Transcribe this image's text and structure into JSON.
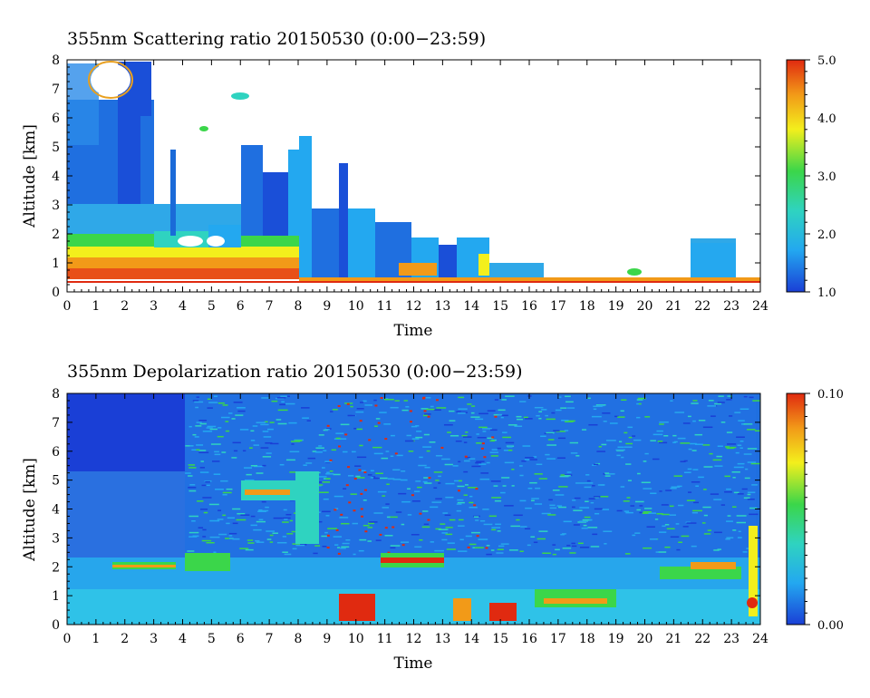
{
  "chart_data": [
    {
      "type": "heatmap",
      "title": "355nm Scattering ratio  20150530 (0:00−23:59)",
      "xlabel": "Time",
      "ylabel": "Altitude [km]",
      "xlim": [
        0,
        24
      ],
      "ylim": [
        0,
        8
      ],
      "x_ticks": [
        "0",
        "1",
        "2",
        "3",
        "4",
        "5",
        "6",
        "7",
        "8",
        "9",
        "10",
        "11",
        "12",
        "13",
        "14",
        "15",
        "16",
        "17",
        "18",
        "19",
        "20",
        "21",
        "22",
        "23",
        "24"
      ],
      "y_ticks": [
        "0",
        "1",
        "2",
        "3",
        "4",
        "5",
        "6",
        "7",
        "8"
      ],
      "colorbar": {
        "min": 1.0,
        "max": 5.0,
        "ticks": [
          "1.0",
          "2.0",
          "3.0",
          "4.0",
          "5.0"
        ]
      },
      "colormap": [
        "#1a3fd6",
        "#23a8f0",
        "#2fd3c0",
        "#3bd64a",
        "#f3ef1c",
        "#f29a18",
        "#e02a10"
      ],
      "features": [
        {
          "t0": 0.0,
          "t1": 8.0,
          "h0": 0.3,
          "h1": 1.0,
          "value": 4.2
        },
        {
          "t0": 0.0,
          "t1": 8.0,
          "h0": 1.0,
          "h1": 1.8,
          "value": 3.0
        },
        {
          "t0": 0.0,
          "t1": 3.0,
          "h0": 1.8,
          "h1": 7.5,
          "value": 1.6
        },
        {
          "t0": 6.0,
          "t1": 8.0,
          "h0": 1.8,
          "h1": 4.6,
          "value": 1.5
        },
        {
          "t0": 8.0,
          "t1": 14.5,
          "h0": 0.3,
          "h1": 2.6,
          "value": 1.7
        },
        {
          "t0": 11.5,
          "t1": 13.5,
          "h0": 0.3,
          "h1": 1.0,
          "value": 4.3
        },
        {
          "t0": 14.5,
          "t1": 16.0,
          "h0": 0.3,
          "h1": 0.5,
          "value": 1.5
        },
        {
          "t0": 21.7,
          "t1": 23.0,
          "h0": 0.3,
          "h1": 1.9,
          "value": 1.7
        },
        {
          "t0": 8.0,
          "t1": 24.0,
          "h0": 0.3,
          "h1": 0.45,
          "value": 4.0
        }
      ]
    },
    {
      "type": "heatmap",
      "title": "355nm Depolarization ratio  20150530 (0:00−23:59)",
      "xlabel": "Time",
      "ylabel": "Altitude [km]",
      "xlim": [
        0,
        24
      ],
      "ylim": [
        0,
        8
      ],
      "x_ticks": [
        "0",
        "1",
        "2",
        "3",
        "4",
        "5",
        "6",
        "7",
        "8",
        "9",
        "10",
        "11",
        "12",
        "13",
        "14",
        "15",
        "16",
        "17",
        "18",
        "19",
        "20",
        "21",
        "22",
        "23",
        "24"
      ],
      "y_ticks": [
        "0",
        "1",
        "2",
        "3",
        "4",
        "5",
        "6",
        "7",
        "8"
      ],
      "colorbar": {
        "min": 0.0,
        "max": 0.1,
        "ticks": [
          "0.00",
          "0.10"
        ]
      },
      "colormap": [
        "#1a3fd6",
        "#23a8f0",
        "#2fd3c0",
        "#3bd64a",
        "#f3ef1c",
        "#f29a18",
        "#e02a10"
      ],
      "features": [
        {
          "t0": 0.0,
          "t1": 4.0,
          "h0": 0.0,
          "h1": 8.0,
          "value": 0.005
        },
        {
          "t0": 0.0,
          "t1": 8.0,
          "h0": 0.0,
          "h1": 2.0,
          "value": 0.03
        },
        {
          "t0": 4.0,
          "t1": 23.8,
          "h0": 2.0,
          "h1": 8.0,
          "value": 0.02
        },
        {
          "t0": 8.0,
          "t1": 24.0,
          "h0": 0.0,
          "h1": 2.0,
          "value": 0.035
        },
        {
          "t0": 9.5,
          "t1": 10.5,
          "h0": 0.0,
          "h1": 0.6,
          "value": 0.09
        },
        {
          "t0": 11.5,
          "t1": 13.0,
          "h0": 2.0,
          "h1": 2.4,
          "value": 0.08
        },
        {
          "t0": 16.5,
          "t1": 19.0,
          "h0": 0.4,
          "h1": 1.0,
          "value": 0.08
        },
        {
          "t0": 22.0,
          "t1": 23.0,
          "h0": 1.8,
          "h1": 2.4,
          "value": 0.08
        }
      ]
    }
  ]
}
